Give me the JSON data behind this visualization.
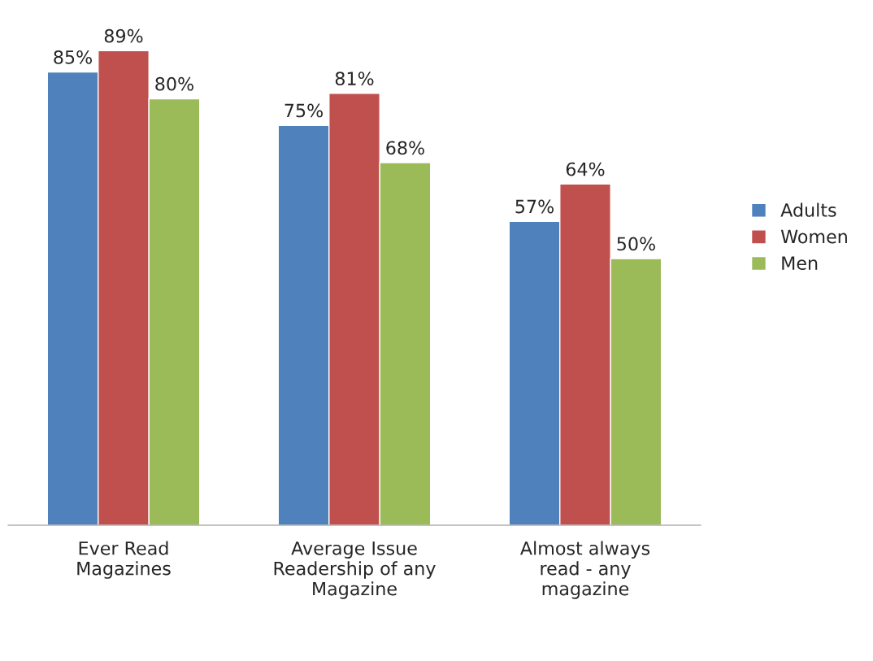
{
  "chart_data": {
    "type": "bar",
    "categories": [
      "Ever Read\nMagazines",
      "Average Issue\nReadership of any\nMagazine",
      "Almost always\nread - any\nmagazine"
    ],
    "series": [
      {
        "name": "Adults",
        "color": "#4f81bd",
        "values": [
          85,
          75,
          57
        ],
        "value_labels": [
          "85%",
          "75%",
          "57%"
        ]
      },
      {
        "name": "Women",
        "color": "#c0504d",
        "values": [
          89,
          81,
          64
        ],
        "value_labels": [
          "89%",
          "81%",
          "64%"
        ]
      },
      {
        "name": "Men",
        "color": "#9bbb59",
        "values": [
          80,
          68,
          50
        ],
        "value_labels": [
          "80%",
          "68%",
          "50%"
        ]
      }
    ],
    "legend": "right",
    "grid": false
  }
}
